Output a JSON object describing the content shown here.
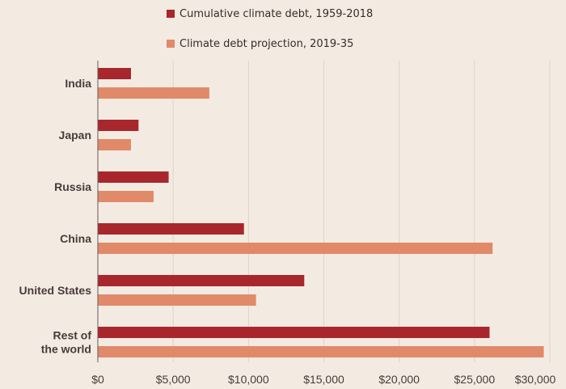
{
  "chart_data": {
    "type": "bar",
    "orientation": "horizontal",
    "categories": [
      [
        "India"
      ],
      [
        "Japan"
      ],
      [
        "Russia"
      ],
      [
        "China"
      ],
      [
        "United States"
      ],
      [
        "Rest of",
        "the world"
      ]
    ],
    "series": [
      {
        "name": "Cumulative climate debt, 1959-2018",
        "color": "#a8272c",
        "values": [
          2200,
          2700,
          4700,
          9700,
          13700,
          26000
        ]
      },
      {
        "name": "Climate debt projection, 2019-35",
        "color": "#e08a6a",
        "values": [
          7400,
          2200,
          3700,
          26200,
          10500,
          29600
        ]
      }
    ],
    "xlim": [
      0,
      30000
    ],
    "xticks": [
      "$0",
      "$5,000",
      "$10,000",
      "$15,000",
      "$20,000",
      "$25,000",
      "$30,000"
    ],
    "xtick_values": [
      0,
      5000,
      10000,
      15000,
      20000,
      25000,
      30000
    ],
    "grid": true,
    "legend_position": "top"
  }
}
